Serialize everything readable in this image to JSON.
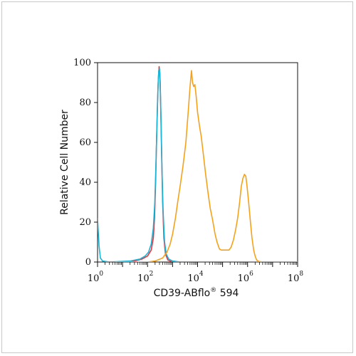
{
  "chart_data": {
    "type": "line",
    "xlabel": "CD39-ABflo",
    "xlabel_superscript": "®",
    "xlabel_suffix": " 594",
    "ylabel": "Relative Cell Number",
    "x_scale": "log",
    "xlim": [
      1,
      100000000
    ],
    "ylim": [
      0,
      100
    ],
    "y_ticks": [
      0,
      20,
      40,
      60,
      80,
      100
    ],
    "x_ticks": [
      {
        "base": "10",
        "exp": "0",
        "value": 1
      },
      {
        "base": "10",
        "exp": "2",
        "value": 100
      },
      {
        "base": "10",
        "exp": "4",
        "value": 10000
      },
      {
        "base": "10",
        "exp": "6",
        "value": 1000000
      },
      {
        "base": "10",
        "exp": "8",
        "value": 100000000
      }
    ],
    "grid": false,
    "series": [
      {
        "color": "#e8343c",
        "points": [
          [
            2,
            0
          ],
          [
            10,
            0
          ],
          [
            30,
            0.5
          ],
          [
            60,
            1.5
          ],
          [
            100,
            3
          ],
          [
            140,
            6
          ],
          [
            170,
            12
          ],
          [
            190,
            22
          ],
          [
            210,
            40
          ],
          [
            230,
            62
          ],
          [
            250,
            80
          ],
          [
            270,
            92
          ],
          [
            290,
            98
          ],
          [
            310,
            95
          ],
          [
            330,
            82
          ],
          [
            360,
            58
          ],
          [
            400,
            30
          ],
          [
            450,
            12
          ],
          [
            520,
            4
          ],
          [
            650,
            1
          ],
          [
            1000,
            0
          ],
          [
            100000000,
            0
          ]
        ]
      },
      {
        "color": "#1ab4d6",
        "points": [
          [
            1,
            22
          ],
          [
            1.15,
            8
          ],
          [
            1.3,
            2
          ],
          [
            1.6,
            0.5
          ],
          [
            3,
            0
          ],
          [
            20,
            0.5
          ],
          [
            50,
            1.5
          ],
          [
            80,
            3
          ],
          [
            110,
            5
          ],
          [
            140,
            9
          ],
          [
            170,
            17
          ],
          [
            195,
            30
          ],
          [
            215,
            48
          ],
          [
            240,
            70
          ],
          [
            260,
            87
          ],
          [
            280,
            96
          ],
          [
            300,
            97
          ],
          [
            320,
            90
          ],
          [
            345,
            72
          ],
          [
            380,
            45
          ],
          [
            420,
            25
          ],
          [
            480,
            10
          ],
          [
            560,
            4
          ],
          [
            700,
            1.5
          ],
          [
            1000,
            0.5
          ],
          [
            2000,
            0
          ],
          [
            100000000,
            0
          ]
        ]
      },
      {
        "color": "#f5a21b",
        "points": [
          [
            5,
            0
          ],
          [
            100,
            0
          ],
          [
            200,
            0.5
          ],
          [
            400,
            2
          ],
          [
            600,
            5
          ],
          [
            800,
            9
          ],
          [
            1000,
            14
          ],
          [
            1300,
            22
          ],
          [
            1600,
            30
          ],
          [
            2000,
            38
          ],
          [
            2600,
            48
          ],
          [
            3400,
            60
          ],
          [
            4200,
            75
          ],
          [
            5000,
            88
          ],
          [
            5700,
            96
          ],
          [
            6300,
            90
          ],
          [
            7000,
            88
          ],
          [
            7800,
            89
          ],
          [
            8800,
            83
          ],
          [
            10000,
            75
          ],
          [
            12000,
            68
          ],
          [
            14000,
            63
          ],
          [
            17000,
            54
          ],
          [
            21000,
            44
          ],
          [
            26000,
            35
          ],
          [
            32000,
            27
          ],
          [
            40000,
            21
          ],
          [
            50000,
            14
          ],
          [
            60000,
            10
          ],
          [
            75000,
            6.5
          ],
          [
            90000,
            6
          ],
          [
            130000,
            6
          ],
          [
            180000,
            6
          ],
          [
            220000,
            7.5
          ],
          [
            270000,
            11
          ],
          [
            330000,
            16
          ],
          [
            400000,
            22
          ],
          [
            480000,
            30
          ],
          [
            560000,
            38
          ],
          [
            650000,
            42
          ],
          [
            750000,
            44
          ],
          [
            850000,
            43
          ],
          [
            950000,
            38
          ],
          [
            1100000,
            30
          ],
          [
            1300000,
            20
          ],
          [
            1500000,
            12
          ],
          [
            1750000,
            6
          ],
          [
            2000000,
            3
          ],
          [
            2300000,
            1
          ],
          [
            2800000,
            0.3
          ],
          [
            4000000,
            0
          ],
          [
            100000000,
            0
          ]
        ]
      }
    ]
  }
}
